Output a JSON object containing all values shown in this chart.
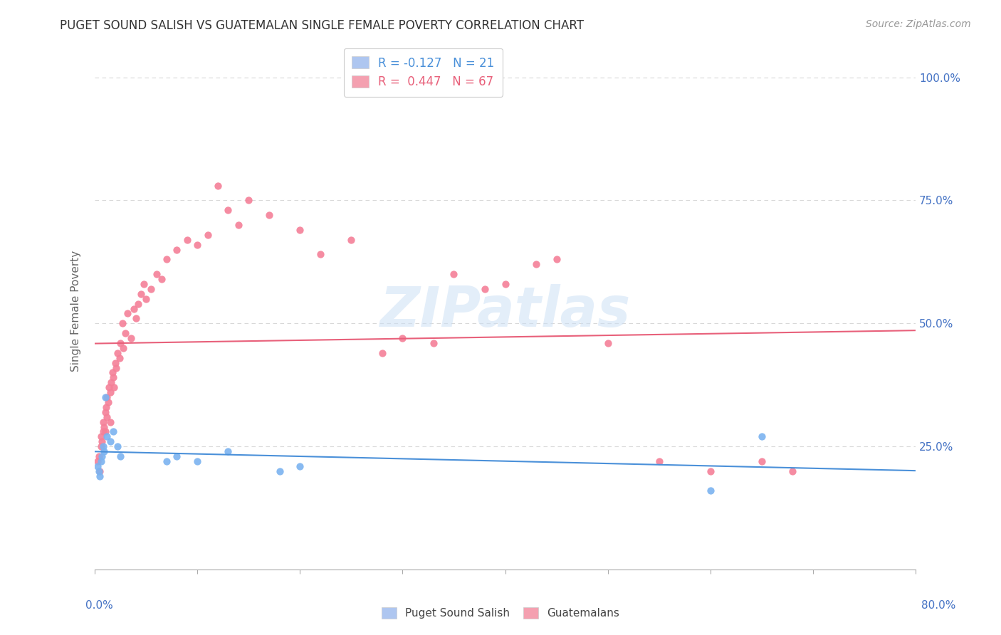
{
  "title": "PUGET SOUND SALISH VS GUATEMALAN SINGLE FEMALE POVERTY CORRELATION CHART",
  "source": "Source: ZipAtlas.com",
  "ylabel": "Single Female Poverty",
  "watermark": "ZIPatlas",
  "legend1_label": "R = -0.127   N = 21",
  "legend2_label": "R =  0.447   N = 67",
  "legend1_patch_color": "#aec6f0",
  "legend2_patch_color": "#f4a0b0",
  "series1_color": "#7bb3f0",
  "series2_color": "#f48098",
  "trendline1_color": "#4a90d9",
  "trendline2_color": "#e8607a",
  "background_color": "#ffffff",
  "grid_color": "#d8d8d8",
  "axis_label_color": "#4472c4",
  "ylabel_color": "#666666",
  "title_color": "#333333",
  "source_color": "#999999",
  "xlim": [
    0.0,
    0.8
  ],
  "ylim": [
    0.0,
    1.05
  ],
  "salish_x": [
    0.003,
    0.004,
    0.005,
    0.006,
    0.007,
    0.008,
    0.009,
    0.01,
    0.012,
    0.015,
    0.018,
    0.022,
    0.025,
    0.07,
    0.08,
    0.1,
    0.13,
    0.18,
    0.2,
    0.6,
    0.65
  ],
  "salish_y": [
    0.21,
    0.2,
    0.19,
    0.22,
    0.23,
    0.25,
    0.24,
    0.35,
    0.27,
    0.26,
    0.28,
    0.25,
    0.23,
    0.22,
    0.23,
    0.22,
    0.24,
    0.2,
    0.21,
    0.16,
    0.27
  ],
  "guatemalan_x": [
    0.003,
    0.004,
    0.005,
    0.006,
    0.006,
    0.007,
    0.008,
    0.008,
    0.009,
    0.01,
    0.01,
    0.011,
    0.012,
    0.012,
    0.013,
    0.014,
    0.015,
    0.015,
    0.016,
    0.017,
    0.018,
    0.019,
    0.02,
    0.021,
    0.022,
    0.024,
    0.025,
    0.027,
    0.028,
    0.03,
    0.032,
    0.035,
    0.038,
    0.04,
    0.042,
    0.045,
    0.048,
    0.05,
    0.055,
    0.06,
    0.065,
    0.07,
    0.08,
    0.09,
    0.1,
    0.11,
    0.12,
    0.13,
    0.14,
    0.15,
    0.17,
    0.2,
    0.22,
    0.25,
    0.28,
    0.3,
    0.33,
    0.35,
    0.38,
    0.4,
    0.43,
    0.45,
    0.5,
    0.55,
    0.6,
    0.65,
    0.68
  ],
  "guatemalan_y": [
    0.22,
    0.23,
    0.2,
    0.25,
    0.27,
    0.26,
    0.28,
    0.3,
    0.29,
    0.32,
    0.28,
    0.33,
    0.31,
    0.35,
    0.34,
    0.37,
    0.36,
    0.3,
    0.38,
    0.4,
    0.39,
    0.37,
    0.42,
    0.41,
    0.44,
    0.43,
    0.46,
    0.5,
    0.45,
    0.48,
    0.52,
    0.47,
    0.53,
    0.51,
    0.54,
    0.56,
    0.58,
    0.55,
    0.57,
    0.6,
    0.59,
    0.63,
    0.65,
    0.67,
    0.66,
    0.68,
    0.78,
    0.73,
    0.7,
    0.75,
    0.72,
    0.69,
    0.64,
    0.67,
    0.44,
    0.47,
    0.46,
    0.6,
    0.57,
    0.58,
    0.62,
    0.63,
    0.46,
    0.22,
    0.2,
    0.22,
    0.2
  ]
}
